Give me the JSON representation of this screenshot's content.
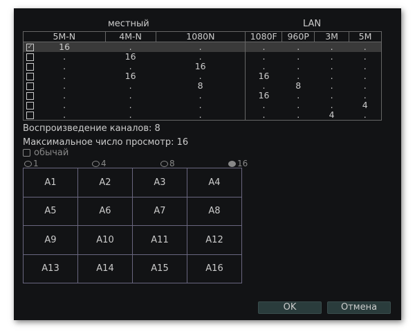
{
  "groups": {
    "local": "местный",
    "lan": "LAN"
  },
  "columns": [
    "5M-N",
    "4M-N",
    "1080N",
    "1080F",
    "960P",
    "3M",
    "5M"
  ],
  "rows": [
    {
      "checked": true,
      "values": [
        "16",
        ".",
        ".",
        ".",
        ".",
        ".",
        "."
      ]
    },
    {
      "checked": false,
      "values": [
        ".",
        "16",
        ".",
        ".",
        ".",
        ".",
        "."
      ]
    },
    {
      "checked": false,
      "values": [
        ".",
        ".",
        "16",
        ".",
        ".",
        ".",
        "."
      ]
    },
    {
      "checked": false,
      "values": [
        ".",
        "16",
        ".",
        "16",
        ".",
        ".",
        "."
      ]
    },
    {
      "checked": false,
      "values": [
        ".",
        ".",
        "8",
        ".",
        "8",
        ".",
        "."
      ]
    },
    {
      "checked": false,
      "values": [
        ".",
        ".",
        ".",
        "16",
        ".",
        ".",
        "."
      ]
    },
    {
      "checked": false,
      "values": [
        ".",
        ".",
        ".",
        ".",
        ".",
        ".",
        "4"
      ]
    },
    {
      "checked": false,
      "values": [
        ".",
        ".",
        ".",
        ".",
        ".",
        "4",
        "."
      ]
    }
  ],
  "playback_channels": "Воспроизведение каналов: 8",
  "max_view": "Максимальное число просмотр: 16",
  "custom_label": "обычай",
  "layouts": [
    {
      "label": "1",
      "selected": false
    },
    {
      "label": "4",
      "selected": false
    },
    {
      "label": "8",
      "selected": false
    },
    {
      "label": "16",
      "selected": true
    }
  ],
  "channels": [
    "A1",
    "A2",
    "A3",
    "A4",
    "A5",
    "A6",
    "A7",
    "A8",
    "A9",
    "A10",
    "A11",
    "A12",
    "A13",
    "A14",
    "A15",
    "A16"
  ],
  "buttons": {
    "ok": "OK",
    "cancel": "Отмена"
  }
}
